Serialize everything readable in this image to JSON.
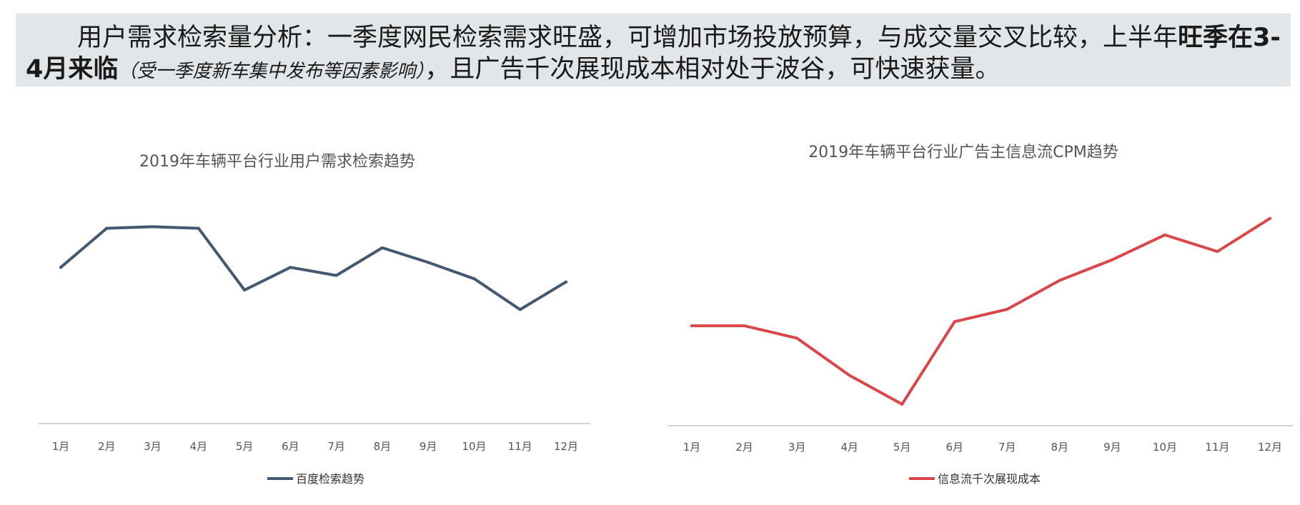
{
  "banner": {
    "part1": "用户需求检索量分析：一季度网民检索需求旺盛，可增加市场投放预算，与成交量交叉比较，上半年",
    "bold": "旺季在3-4月来临",
    "note": "（受一季度新车集中发布等因素影响）",
    "part2": "，且广告千次展现成本相对处于波谷，可快速获量。"
  },
  "colors": {
    "left_series": "#44586e",
    "right_series": "#d9474a",
    "axis": "#c8c8c8",
    "banner_bg": "#e3e6e9"
  },
  "chart_data": [
    {
      "type": "line",
      "title": "2019年车辆平台行业用户需求检索趋势",
      "categories": [
        "1月",
        "2月",
        "3月",
        "4月",
        "5月",
        "6月",
        "7月",
        "8月",
        "9月",
        "10月",
        "11月",
        "12月"
      ],
      "series": [
        {
          "name": "百度检索趋势",
          "values": [
            65,
            77,
            77.5,
            77,
            58,
            65,
            62.5,
            71,
            66.5,
            61.5,
            52,
            60.5
          ]
        }
      ],
      "ylim": [
        0,
        100
      ],
      "grid": false,
      "legend": "bottom"
    },
    {
      "type": "line",
      "title": "2019年车辆平台行业广告主信息流CPM趋势",
      "categories": [
        "1月",
        "2月",
        "3月",
        "4月",
        "5月",
        "6月",
        "7月",
        "8月",
        "9月",
        "10月",
        "11月",
        "12月"
      ],
      "series": [
        {
          "name": "信息流千次展现成本",
          "values": [
            55,
            55,
            52,
            43,
            36,
            56,
            59,
            66,
            71,
            77,
            73,
            81
          ]
        }
      ],
      "ylim": [
        0,
        100
      ],
      "grid": false,
      "legend": "bottom"
    }
  ]
}
